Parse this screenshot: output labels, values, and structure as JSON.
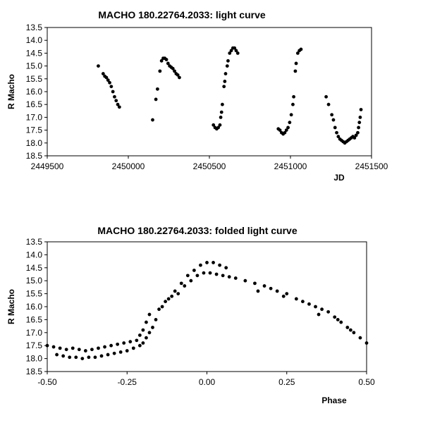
{
  "chart_data": [
    {
      "type": "scatter",
      "title": "MACHO 180.22764.2033: light curve",
      "xlabel": "JD",
      "ylabel": "R Macho",
      "xlim": [
        2449500,
        2451500
      ],
      "ylim": [
        13.5,
        18.5
      ],
      "y_inverted": true,
      "grid": false,
      "xticks": [
        "2449500",
        "2450000",
        "2450500",
        "2451000",
        "2451500"
      ],
      "yticks": [
        "13.5",
        "14.0",
        "14.5",
        "15.0",
        "15.5",
        "16.0",
        "16.5",
        "17.0",
        "17.5",
        "18.0",
        "18.5"
      ],
      "series": [
        {
          "marker_color": "#000000",
          "points": [
            [
              2449815,
              15.0
            ],
            [
              2449845,
              15.3
            ],
            [
              2449855,
              15.4
            ],
            [
              2449865,
              15.45
            ],
            [
              2449875,
              15.55
            ],
            [
              2449885,
              15.65
            ],
            [
              2449895,
              15.8
            ],
            [
              2449905,
              16.0
            ],
            [
              2449915,
              16.2
            ],
            [
              2449925,
              16.35
            ],
            [
              2449935,
              16.5
            ],
            [
              2449945,
              16.6
            ],
            [
              2450150,
              17.1
            ],
            [
              2450170,
              16.3
            ],
            [
              2450180,
              15.9
            ],
            [
              2450195,
              15.2
            ],
            [
              2450205,
              14.8
            ],
            [
              2450215,
              14.7
            ],
            [
              2450225,
              14.7
            ],
            [
              2450235,
              14.75
            ],
            [
              2450245,
              14.9
            ],
            [
              2450255,
              15.0
            ],
            [
              2450265,
              15.05
            ],
            [
              2450275,
              15.1
            ],
            [
              2450285,
              15.2
            ],
            [
              2450295,
              15.3
            ],
            [
              2450305,
              15.35
            ],
            [
              2450315,
              15.45
            ],
            [
              2450525,
              17.3
            ],
            [
              2450535,
              17.4
            ],
            [
              2450545,
              17.45
            ],
            [
              2450555,
              17.4
            ],
            [
              2450565,
              17.3
            ],
            [
              2450570,
              17.0
            ],
            [
              2450575,
              16.8
            ],
            [
              2450580,
              16.5
            ],
            [
              2450590,
              15.8
            ],
            [
              2450595,
              15.6
            ],
            [
              2450600,
              15.3
            ],
            [
              2450610,
              15.0
            ],
            [
              2450615,
              14.8
            ],
            [
              2450625,
              14.5
            ],
            [
              2450635,
              14.4
            ],
            [
              2450645,
              14.3
            ],
            [
              2450655,
              14.3
            ],
            [
              2450665,
              14.4
            ],
            [
              2450675,
              14.5
            ],
            [
              2450925,
              17.45
            ],
            [
              2450935,
              17.5
            ],
            [
              2450945,
              17.6
            ],
            [
              2450955,
              17.65
            ],
            [
              2450965,
              17.6
            ],
            [
              2450975,
              17.5
            ],
            [
              2450985,
              17.4
            ],
            [
              2450995,
              17.2
            ],
            [
              2451005,
              16.9
            ],
            [
              2451015,
              16.5
            ],
            [
              2451020,
              16.2
            ],
            [
              2451030,
              15.2
            ],
            [
              2451035,
              14.9
            ],
            [
              2451045,
              14.5
            ],
            [
              2451055,
              14.4
            ],
            [
              2451065,
              14.35
            ],
            [
              2451220,
              16.2
            ],
            [
              2451235,
              16.5
            ],
            [
              2451255,
              16.9
            ],
            [
              2451265,
              17.1
            ],
            [
              2451275,
              17.4
            ],
            [
              2451285,
              17.6
            ],
            [
              2451295,
              17.75
            ],
            [
              2451305,
              17.85
            ],
            [
              2451315,
              17.9
            ],
            [
              2451325,
              17.95
            ],
            [
              2451335,
              18.0
            ],
            [
              2451345,
              17.95
            ],
            [
              2451355,
              17.9
            ],
            [
              2451365,
              17.85
            ],
            [
              2451375,
              17.8
            ],
            [
              2451385,
              17.75
            ],
            [
              2451395,
              17.8
            ],
            [
              2451405,
              17.7
            ],
            [
              2451415,
              17.6
            ],
            [
              2451420,
              17.4
            ],
            [
              2451425,
              17.2
            ],
            [
              2451430,
              17.0
            ],
            [
              2451435,
              16.7
            ]
          ]
        }
      ]
    },
    {
      "type": "scatter",
      "title": "MACHO 180.22764.2033: folded light curve",
      "xlabel": "Phase",
      "ylabel": "R Macho",
      "xlim": [
        -0.5,
        0.5
      ],
      "ylim": [
        13.5,
        18.5
      ],
      "y_inverted": true,
      "grid": false,
      "xticks": [
        "-0.50",
        "-0.25",
        "0.00",
        "0.25",
        "0.50"
      ],
      "yticks": [
        "13.5",
        "14.0",
        "14.5",
        "15.0",
        "15.5",
        "16.0",
        "16.5",
        "17.0",
        "17.5",
        "18.0",
        "18.5"
      ],
      "series": [
        {
          "marker_color": "#000000",
          "points": [
            [
              -0.5,
              17.5
            ],
            [
              -0.48,
              17.55
            ],
            [
              -0.46,
              17.6
            ],
            [
              -0.44,
              17.65
            ],
            [
              -0.42,
              17.6
            ],
            [
              -0.4,
              17.65
            ],
            [
              -0.38,
              17.7
            ],
            [
              -0.36,
              17.65
            ],
            [
              -0.34,
              17.6
            ],
            [
              -0.32,
              17.55
            ],
            [
              -0.3,
              17.5
            ],
            [
              -0.28,
              17.45
            ],
            [
              -0.26,
              17.4
            ],
            [
              -0.24,
              17.35
            ],
            [
              -0.22,
              17.3
            ],
            [
              -0.21,
              17.1
            ],
            [
              -0.2,
              16.9
            ],
            [
              -0.19,
              16.6
            ],
            [
              -0.18,
              16.3
            ],
            [
              -0.47,
              17.85
            ],
            [
              -0.45,
              17.9
            ],
            [
              -0.43,
              17.95
            ],
            [
              -0.41,
              17.95
            ],
            [
              -0.39,
              18.0
            ],
            [
              -0.37,
              17.95
            ],
            [
              -0.35,
              17.95
            ],
            [
              -0.33,
              17.9
            ],
            [
              -0.31,
              17.85
            ],
            [
              -0.29,
              17.8
            ],
            [
              -0.27,
              17.75
            ],
            [
              -0.25,
              17.7
            ],
            [
              -0.23,
              17.6
            ],
            [
              -0.21,
              17.5
            ],
            [
              -0.2,
              17.4
            ],
            [
              -0.19,
              17.2
            ],
            [
              -0.18,
              17.0
            ],
            [
              -0.17,
              16.8
            ],
            [
              -0.16,
              16.5
            ],
            [
              -0.14,
              16.0
            ],
            [
              -0.12,
              15.7
            ],
            [
              -0.1,
              15.4
            ],
            [
              -0.08,
              15.1
            ],
            [
              -0.06,
              14.8
            ],
            [
              -0.04,
              14.6
            ],
            [
              -0.02,
              14.4
            ],
            [
              0.0,
              14.3
            ],
            [
              0.02,
              14.3
            ],
            [
              0.04,
              14.4
            ],
            [
              0.06,
              14.5
            ],
            [
              -0.15,
              16.1
            ],
            [
              -0.13,
              15.8
            ],
            [
              -0.11,
              15.6
            ],
            [
              -0.09,
              15.5
            ],
            [
              -0.07,
              15.2
            ],
            [
              -0.05,
              15.0
            ],
            [
              -0.03,
              14.8
            ],
            [
              -0.01,
              14.7
            ],
            [
              0.01,
              14.7
            ],
            [
              0.03,
              14.75
            ],
            [
              0.05,
              14.8
            ],
            [
              0.07,
              14.85
            ],
            [
              0.09,
              14.9
            ],
            [
              0.12,
              15.0
            ],
            [
              0.15,
              15.1
            ],
            [
              0.18,
              15.2
            ],
            [
              0.2,
              15.3
            ],
            [
              0.22,
              15.4
            ],
            [
              0.25,
              15.5
            ],
            [
              0.28,
              15.7
            ],
            [
              0.3,
              15.8
            ],
            [
              0.32,
              15.9
            ],
            [
              0.34,
              16.0
            ],
            [
              0.36,
              16.1
            ],
            [
              0.38,
              16.2
            ],
            [
              0.4,
              16.4
            ],
            [
              0.42,
              16.6
            ],
            [
              0.44,
              16.8
            ],
            [
              0.46,
              17.0
            ],
            [
              0.48,
              17.2
            ],
            [
              0.5,
              17.4
            ],
            [
              0.16,
              15.4
            ],
            [
              0.24,
              15.6
            ],
            [
              0.35,
              16.3
            ],
            [
              0.41,
              16.5
            ],
            [
              0.45,
              16.9
            ]
          ]
        }
      ]
    }
  ]
}
